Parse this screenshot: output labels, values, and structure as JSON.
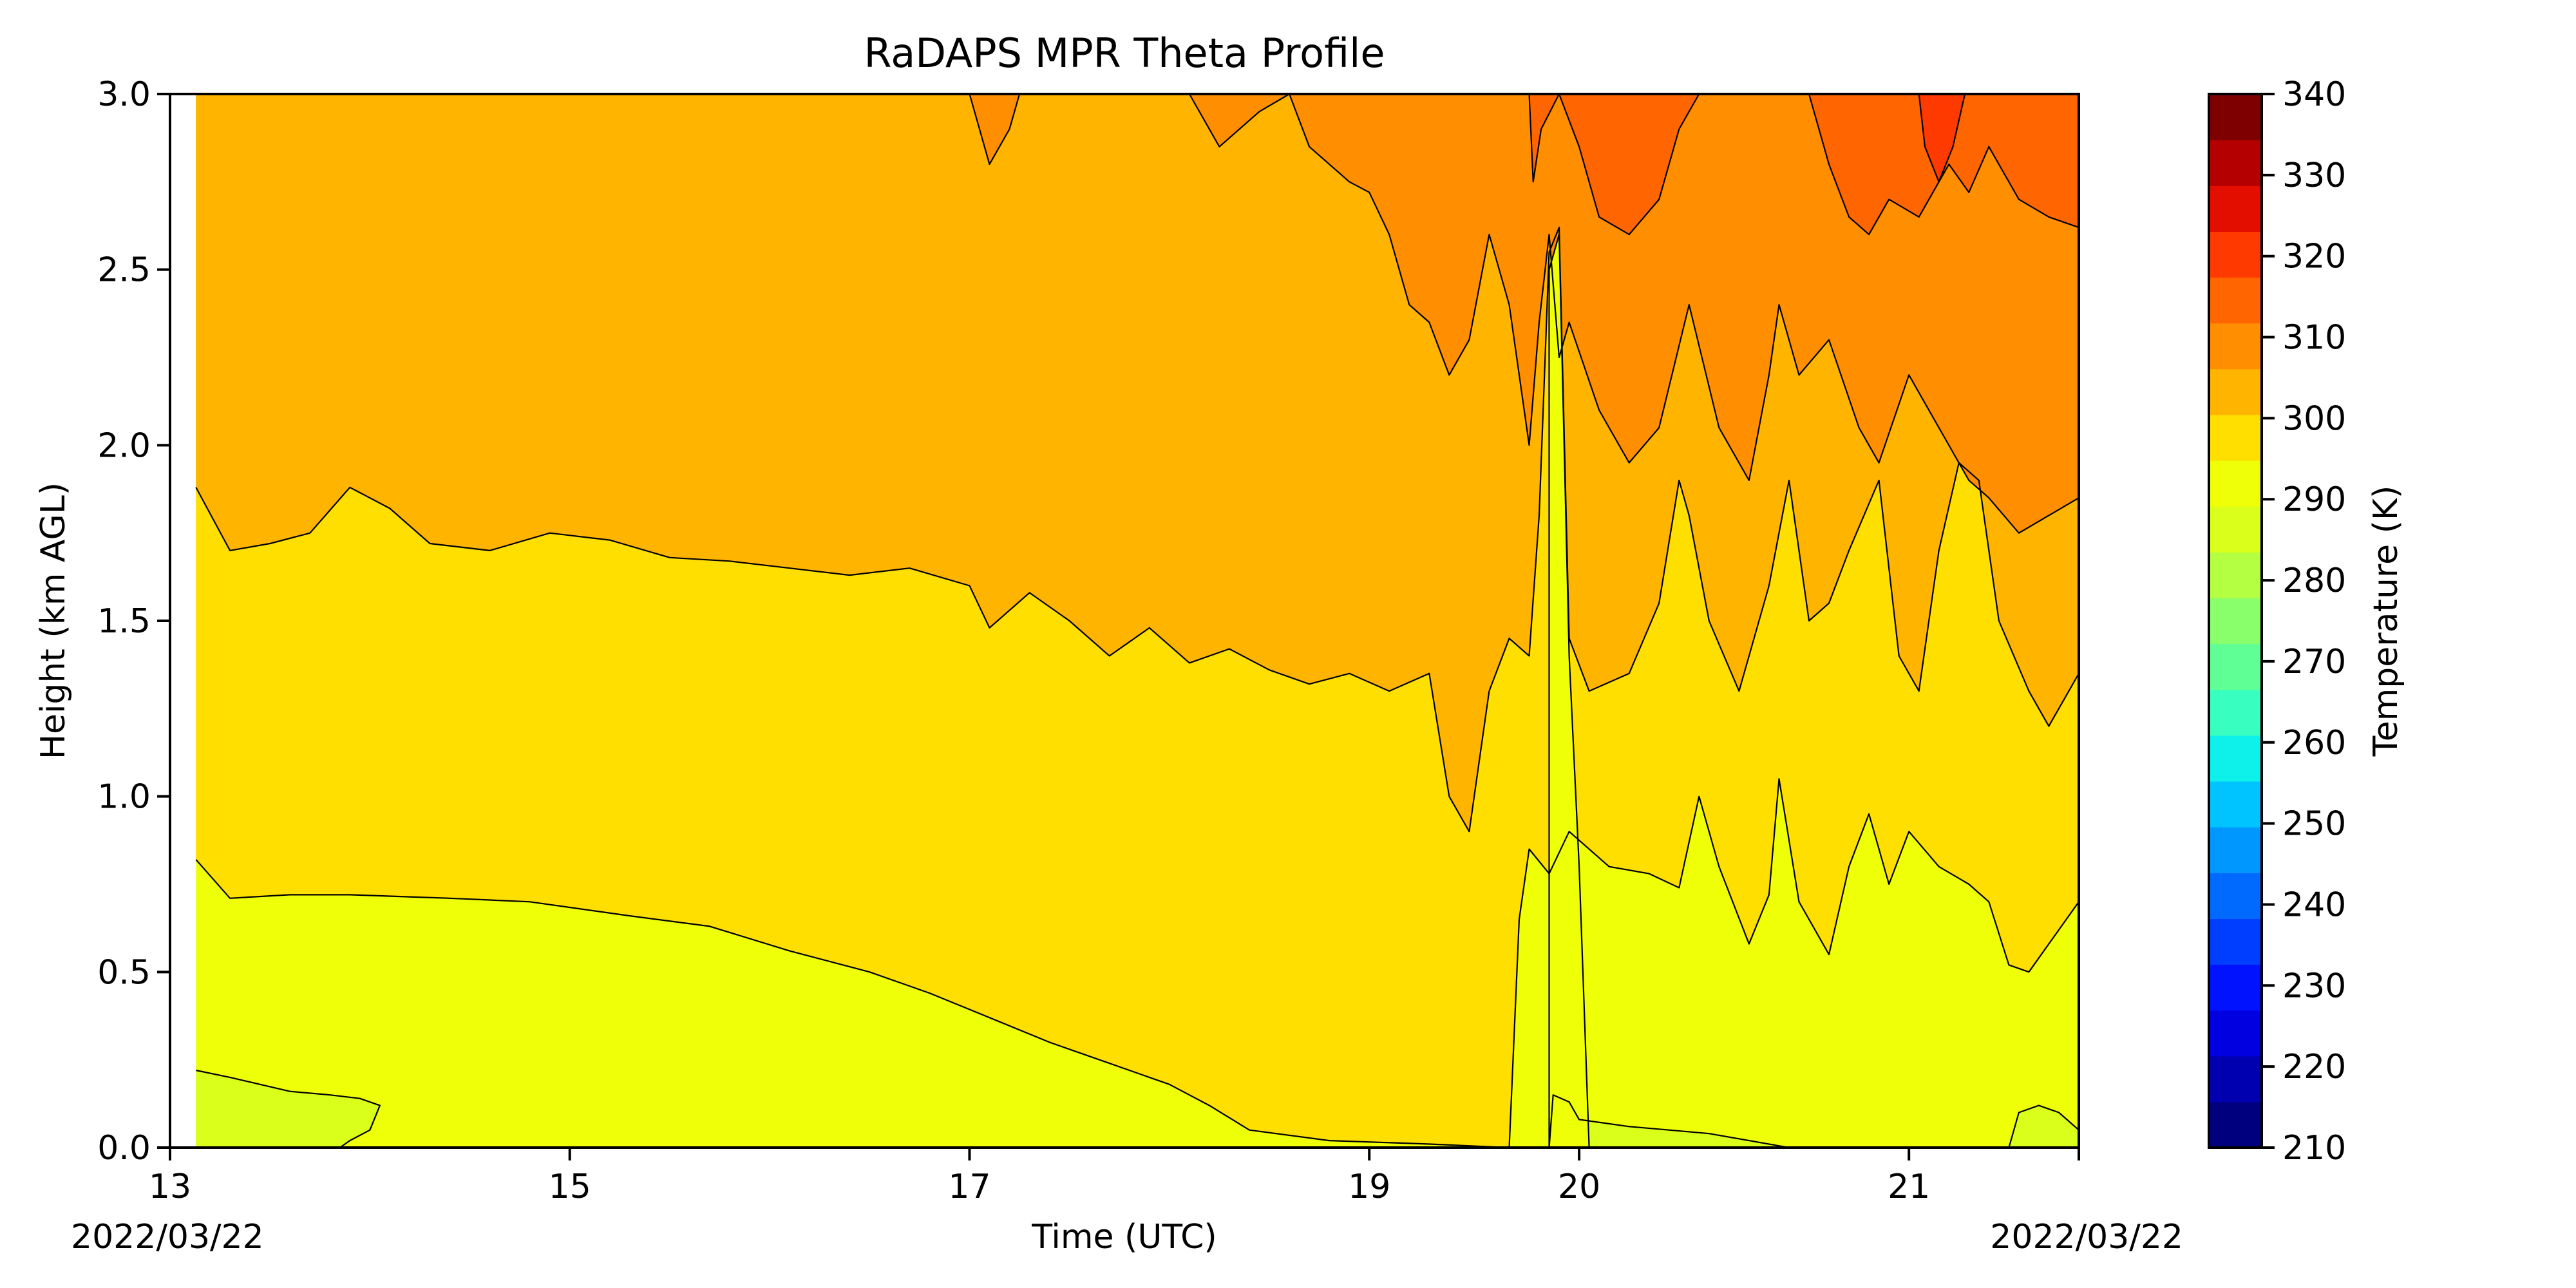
{
  "chart_data": {
    "type": "contour",
    "title": "RaDAPS MPR Theta Profile",
    "xlabel": "Time (UTC)",
    "ylabel": "Height (km AGL)",
    "date_start": "2022/03/22",
    "date_end": "2022/03/22",
    "x_ticks": [
      {
        "hour": 13,
        "label": "13"
      },
      {
        "hour": 15,
        "label": "15"
      },
      {
        "hour": 17,
        "label": "17"
      },
      {
        "hour": 19,
        "label": "19"
      },
      {
        "hour": 20.05,
        "label": "20"
      },
      {
        "hour": 21.7,
        "label": "21"
      }
    ],
    "x_range_hours": [
      13,
      22.55
    ],
    "data_start_hour": 13.13,
    "y_ticks": [
      "0.0",
      "0.5",
      "1.0",
      "1.5",
      "2.0",
      "2.5",
      "3.0"
    ],
    "ylim": [
      0,
      3.0
    ],
    "colorbar": {
      "label": "Temperature (K)",
      "min": 210,
      "max": 340,
      "step": 5,
      "tick_labels": [
        "210",
        "220",
        "230",
        "240",
        "250",
        "260",
        "270",
        "280",
        "290",
        "300",
        "310",
        "320",
        "330",
        "340"
      ],
      "colors": [
        "#00007f",
        "#0000b0",
        "#0000e0",
        "#0012ff",
        "#003eff",
        "#006aff",
        "#0098ff",
        "#00c4ff",
        "#0ef0ea",
        "#38ffbf",
        "#60ff96",
        "#8aff6c",
        "#b4ff42",
        "#daff1a",
        "#eeff07",
        "#ffdf00",
        "#ffb400",
        "#ff8f00",
        "#ff6500",
        "#ff3a00",
        "#e30e00",
        "#b50000",
        "#7f0000"
      ]
    },
    "level_colors": {
      "285": "#daff1a",
      "290": "#eeff07",
      "295": "#ffdf00",
      "300": "#ffb400",
      "305": "#ff8f00",
      "310": "#ff6500",
      "315": "#ff3a00"
    },
    "contours": [
      {
        "level": 295,
        "boundary": [
          [
            13.13,
            0.82
          ],
          [
            13.3,
            0.71
          ],
          [
            13.6,
            0.72
          ],
          [
            13.9,
            0.72
          ],
          [
            14.4,
            0.71
          ],
          [
            14.8,
            0.7
          ],
          [
            15.3,
            0.66
          ],
          [
            15.7,
            0.63
          ],
          [
            16.1,
            0.56
          ],
          [
            16.5,
            0.5
          ],
          [
            16.8,
            0.44
          ],
          [
            17.1,
            0.37
          ],
          [
            17.4,
            0.3
          ],
          [
            17.7,
            0.24
          ],
          [
            18.0,
            0.18
          ],
          [
            18.2,
            0.12
          ],
          [
            18.4,
            0.05
          ],
          [
            18.8,
            0.02
          ],
          [
            19.3,
            0.01
          ],
          [
            19.7,
            0.0
          ],
          [
            19.75,
            0.65
          ],
          [
            19.8,
            0.85
          ],
          [
            19.9,
            0.78
          ],
          [
            20.0,
            0.9
          ],
          [
            20.2,
            0.8
          ],
          [
            20.4,
            0.78
          ],
          [
            20.55,
            0.74
          ],
          [
            20.65,
            1.0
          ],
          [
            20.75,
            0.8
          ],
          [
            20.9,
            0.58
          ],
          [
            21.0,
            0.72
          ],
          [
            21.05,
            1.05
          ],
          [
            21.15,
            0.7
          ],
          [
            21.3,
            0.55
          ],
          [
            21.4,
            0.8
          ],
          [
            21.5,
            0.95
          ],
          [
            21.6,
            0.75
          ],
          [
            21.7,
            0.9
          ],
          [
            21.85,
            0.8
          ],
          [
            22.0,
            0.75
          ],
          [
            22.1,
            0.7
          ],
          [
            22.2,
            0.52
          ],
          [
            22.3,
            0.5
          ],
          [
            22.4,
            0.58
          ],
          [
            22.55,
            0.7
          ]
        ]
      },
      {
        "level": 300,
        "boundary": [
          [
            13.13,
            1.88
          ],
          [
            13.3,
            1.7
          ],
          [
            13.5,
            1.72
          ],
          [
            13.7,
            1.75
          ],
          [
            13.9,
            1.88
          ],
          [
            14.1,
            1.82
          ],
          [
            14.3,
            1.72
          ],
          [
            14.6,
            1.7
          ],
          [
            14.9,
            1.75
          ],
          [
            15.2,
            1.73
          ],
          [
            15.5,
            1.68
          ],
          [
            15.8,
            1.67
          ],
          [
            16.1,
            1.65
          ],
          [
            16.4,
            1.63
          ],
          [
            16.7,
            1.65
          ],
          [
            17.0,
            1.6
          ],
          [
            17.1,
            1.48
          ],
          [
            17.3,
            1.58
          ],
          [
            17.5,
            1.5
          ],
          [
            17.7,
            1.4
          ],
          [
            17.9,
            1.48
          ],
          [
            18.1,
            1.38
          ],
          [
            18.3,
            1.42
          ],
          [
            18.5,
            1.36
          ],
          [
            18.7,
            1.32
          ],
          [
            18.9,
            1.35
          ],
          [
            19.1,
            1.3
          ],
          [
            19.3,
            1.35
          ],
          [
            19.4,
            1.0
          ],
          [
            19.5,
            0.9
          ],
          [
            19.6,
            1.3
          ],
          [
            19.7,
            1.45
          ],
          [
            19.8,
            1.4
          ],
          [
            19.85,
            1.8
          ],
          [
            19.9,
            2.55
          ],
          [
            19.95,
            2.62
          ],
          [
            20.0,
            1.45
          ],
          [
            20.1,
            1.3
          ],
          [
            20.3,
            1.35
          ],
          [
            20.45,
            1.55
          ],
          [
            20.55,
            1.9
          ],
          [
            20.6,
            1.8
          ],
          [
            20.7,
            1.5
          ],
          [
            20.85,
            1.3
          ],
          [
            21.0,
            1.6
          ],
          [
            21.1,
            1.9
          ],
          [
            21.2,
            1.5
          ],
          [
            21.3,
            1.55
          ],
          [
            21.4,
            1.7
          ],
          [
            21.55,
            1.9
          ],
          [
            21.65,
            1.4
          ],
          [
            21.75,
            1.3
          ],
          [
            21.85,
            1.7
          ],
          [
            21.95,
            1.95
          ],
          [
            22.05,
            1.9
          ],
          [
            22.15,
            1.5
          ],
          [
            22.3,
            1.3
          ],
          [
            22.4,
            1.2
          ],
          [
            22.5,
            1.3
          ],
          [
            22.55,
            1.35
          ]
        ]
      },
      {
        "level": 305,
        "boundary": [
          [
            17.0,
            3.0
          ],
          [
            17.1,
            2.8
          ],
          [
            17.2,
            2.9
          ],
          [
            17.25,
            3.0
          ],
          [
            18.1,
            3.0
          ],
          [
            18.25,
            2.85
          ],
          [
            18.45,
            2.95
          ],
          [
            18.6,
            3.0
          ],
          [
            18.7,
            2.85
          ],
          [
            18.9,
            2.75
          ],
          [
            19.0,
            2.72
          ],
          [
            19.1,
            2.6
          ],
          [
            19.2,
            2.4
          ],
          [
            19.3,
            2.35
          ],
          [
            19.4,
            2.2
          ],
          [
            19.5,
            2.3
          ],
          [
            19.6,
            2.6
          ],
          [
            19.7,
            2.4
          ],
          [
            19.8,
            2.0
          ],
          [
            19.85,
            2.35
          ],
          [
            19.9,
            2.6
          ],
          [
            19.95,
            2.25
          ],
          [
            20.0,
            2.35
          ],
          [
            20.15,
            2.1
          ],
          [
            20.3,
            1.95
          ],
          [
            20.45,
            2.05
          ],
          [
            20.6,
            2.4
          ],
          [
            20.75,
            2.05
          ],
          [
            20.9,
            1.9
          ],
          [
            21.0,
            2.2
          ],
          [
            21.05,
            2.4
          ],
          [
            21.15,
            2.2
          ],
          [
            21.3,
            2.3
          ],
          [
            21.45,
            2.05
          ],
          [
            21.55,
            1.95
          ],
          [
            21.7,
            2.2
          ],
          [
            21.85,
            2.05
          ],
          [
            22.0,
            1.9
          ],
          [
            22.1,
            1.85
          ],
          [
            22.25,
            1.75
          ],
          [
            22.4,
            1.8
          ],
          [
            22.55,
            1.85
          ]
        ]
      },
      {
        "level": 310,
        "boundary": [
          [
            19.8,
            3.0
          ],
          [
            19.82,
            2.75
          ],
          [
            19.86,
            2.9
          ],
          [
            19.95,
            3.0
          ],
          [
            20.05,
            2.85
          ],
          [
            20.15,
            2.65
          ],
          [
            20.3,
            2.6
          ],
          [
            20.45,
            2.7
          ],
          [
            20.55,
            2.9
          ],
          [
            20.65,
            3.0
          ],
          [
            21.2,
            3.0
          ],
          [
            21.3,
            2.8
          ],
          [
            21.4,
            2.65
          ],
          [
            21.5,
            2.6
          ],
          [
            21.6,
            2.7
          ],
          [
            21.75,
            2.65
          ],
          [
            21.9,
            2.8
          ],
          [
            22.0,
            2.72
          ],
          [
            22.1,
            2.85
          ],
          [
            22.25,
            2.7
          ],
          [
            22.4,
            2.65
          ],
          [
            22.55,
            2.62
          ]
        ]
      },
      {
        "level": 315,
        "boundary": [
          [
            21.75,
            3.0
          ],
          [
            21.78,
            2.85
          ],
          [
            21.85,
            2.75
          ],
          [
            21.92,
            2.85
          ],
          [
            21.98,
            3.0
          ]
        ]
      },
      {
        "level": 285,
        "boundary": [
          [
            13.13,
            0.22
          ],
          [
            13.3,
            0.2
          ],
          [
            13.6,
            0.16
          ],
          [
            13.8,
            0.15
          ],
          [
            13.95,
            0.14
          ],
          [
            14.05,
            0.12
          ],
          [
            14.0,
            0.05
          ],
          [
            13.9,
            0.02
          ],
          [
            13.85,
            0.0
          ],
          [
            13.13,
            0.0
          ]
        ]
      },
      {
        "level": 285,
        "boundary": [
          [
            19.9,
            0.0
          ],
          [
            19.92,
            0.15
          ],
          [
            20.0,
            0.13
          ],
          [
            20.05,
            0.08
          ],
          [
            20.3,
            0.06
          ],
          [
            20.5,
            0.05
          ],
          [
            20.7,
            0.04
          ],
          [
            20.9,
            0.02
          ],
          [
            21.1,
            0.0
          ]
        ]
      },
      {
        "level": 285,
        "boundary": [
          [
            22.2,
            0.0
          ],
          [
            22.25,
            0.1
          ],
          [
            22.35,
            0.12
          ],
          [
            22.45,
            0.1
          ],
          [
            22.55,
            0.05
          ],
          [
            22.55,
            0.0
          ]
        ]
      },
      {
        "level": 290,
        "boundary": [
          [
            19.9,
            0.0
          ],
          [
            19.9,
            2.5
          ],
          [
            19.95,
            2.6
          ],
          [
            20.0,
            1.4
          ],
          [
            20.05,
            0.8
          ],
          [
            20.1,
            0.0
          ]
        ]
      }
    ]
  }
}
